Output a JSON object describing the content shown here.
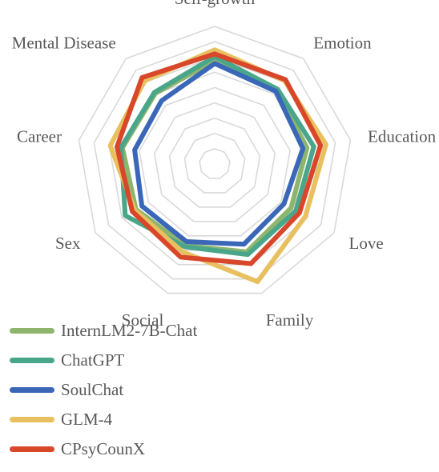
{
  "chart_data": {
    "type": "radar",
    "title": "",
    "axes": [
      "Self-growth",
      "Emotion",
      "Education",
      "Love",
      "Family",
      "Social",
      "Sex",
      "Career",
      "Mental Disease"
    ],
    "rlim": [
      0,
      10
    ],
    "grid": true,
    "legend_position": "bottom-left",
    "series": [
      {
        "name": "InternLM2-7B-Chat",
        "color": "#8db56d",
        "values": [
          7.5,
          7.0,
          6.8,
          6.4,
          6.8,
          6.3,
          6.6,
          6.8,
          6.7
        ]
      },
      {
        "name": "ChatGPT",
        "color": "#4aa68a",
        "values": [
          7.8,
          7.1,
          7.3,
          6.8,
          7.0,
          6.4,
          7.5,
          6.9,
          6.8
        ]
      },
      {
        "name": "SoulChat",
        "color": "#3a67b8",
        "values": [
          7.3,
          6.9,
          6.5,
          5.8,
          6.2,
          6.0,
          6.1,
          5.9,
          6.0
        ]
      },
      {
        "name": "GLM-4",
        "color": "#e8c060",
        "values": [
          8.3,
          7.9,
          8.2,
          7.6,
          9.1,
          6.8,
          6.7,
          7.7,
          7.9
        ]
      },
      {
        "name": "CPsyCounX",
        "color": "#d9472b",
        "values": [
          8.0,
          8.0,
          7.8,
          7.1,
          7.7,
          7.2,
          6.9,
          7.2,
          8.2
        ]
      }
    ]
  }
}
